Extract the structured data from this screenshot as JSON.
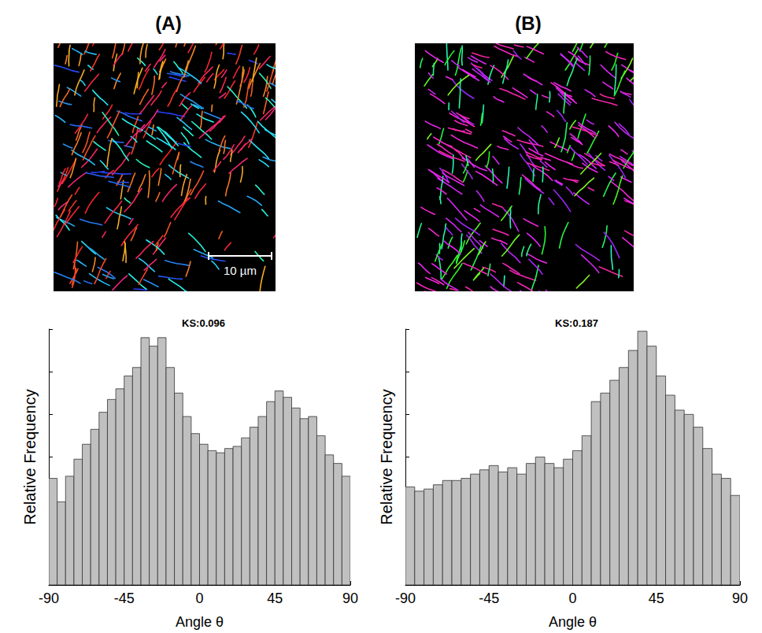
{
  "chart_data": [
    {
      "type": "histogram",
      "panel": "(A)",
      "scale_bar": "10 µm",
      "title": "KS:0.096",
      "x_label": "Angle θ",
      "y_label": "Relative Frequency",
      "color": "#c0c0c0",
      "bins": [
        -90,
        -85,
        -80,
        -75,
        -70,
        -65,
        -60,
        -55,
        -50,
        -45,
        -40,
        -35,
        -30,
        -25,
        -20,
        -15,
        -10,
        -5,
        0,
        5,
        10,
        15,
        20,
        25,
        30,
        35,
        40,
        45,
        50,
        55,
        60,
        65,
        70,
        75,
        80,
        85,
        90
      ],
      "values": [
        2.5,
        1.95,
        2.55,
        2.95,
        3.3,
        3.65,
        4.05,
        4.35,
        4.6,
        4.9,
        5.1,
        5.8,
        5.6,
        5.8,
        5.1,
        4.5,
        3.95,
        3.55,
        3.3,
        3.15,
        3.1,
        3.2,
        3.25,
        3.45,
        3.7,
        3.95,
        4.3,
        4.55,
        4.4,
        4.15,
        3.9,
        3.95,
        3.5,
        3.05,
        2.85,
        2.55
      ],
      "xlim": [
        -90,
        90
      ],
      "xticks": [
        -90,
        -45,
        0,
        45,
        90
      ],
      "ylim": [
        0,
        6
      ],
      "yticks": [
        0,
        1,
        2,
        3,
        4,
        5,
        6
      ],
      "grid": false,
      "tick_labels": "x"
    },
    {
      "type": "histogram",
      "panel": "(B)",
      "title": "KS:0.187",
      "x_label": "Angle θ",
      "y_label": "Relative Frequency",
      "color": "#c0c0c0",
      "bins": [
        -90,
        -85,
        -80,
        -75,
        -70,
        -65,
        -60,
        -55,
        -50,
        -45,
        -40,
        -35,
        -30,
        -25,
        -20,
        -15,
        -10,
        -5,
        0,
        5,
        10,
        15,
        20,
        25,
        30,
        35,
        40,
        45,
        50,
        55,
        60,
        65,
        70,
        75,
        80,
        85,
        90
      ],
      "values": [
        2.3,
        2.2,
        2.25,
        2.35,
        2.45,
        2.45,
        2.5,
        2.6,
        2.7,
        2.8,
        2.65,
        2.75,
        2.6,
        2.85,
        3.0,
        2.85,
        2.75,
        2.95,
        3.15,
        3.5,
        4.3,
        4.5,
        4.8,
        5.1,
        5.5,
        5.95,
        5.6,
        4.9,
        4.45,
        4.1,
        4.0,
        3.7,
        3.2,
        2.6,
        2.5,
        2.1
      ],
      "xlim": [
        -90,
        90
      ],
      "xticks": [
        -90,
        -45,
        0,
        45,
        90
      ],
      "ylim": [
        0,
        6
      ],
      "yticks": [
        0,
        1,
        2,
        3,
        4,
        5,
        6
      ],
      "grid": false,
      "tick_labels": "x"
    }
  ]
}
